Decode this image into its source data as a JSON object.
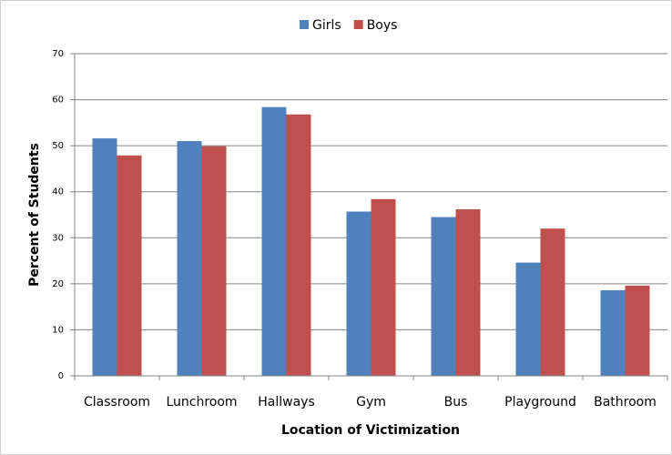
{
  "chart_data": {
    "type": "bar",
    "x_label": "Location of Victimization",
    "y_label": "Percent of Students",
    "categories": [
      "Classroom",
      "Lunchroom",
      "Hallways",
      "Gym",
      "Bus",
      "Playground",
      "Bathroom"
    ],
    "series": [
      {
        "name": "Girls",
        "color": "#4f81bd",
        "values": [
          51.6,
          51.0,
          58.4,
          35.7,
          34.5,
          24.6,
          18.6
        ]
      },
      {
        "name": "Boys",
        "color": "#c0504d",
        "values": [
          47.9,
          49.9,
          56.8,
          38.4,
          36.2,
          32.0,
          19.6
        ]
      }
    ],
    "ylim": [
      0,
      70
    ],
    "yticks": [
      0,
      10,
      20,
      30,
      40,
      50,
      60,
      70
    ],
    "grid": true,
    "legend": "top"
  }
}
